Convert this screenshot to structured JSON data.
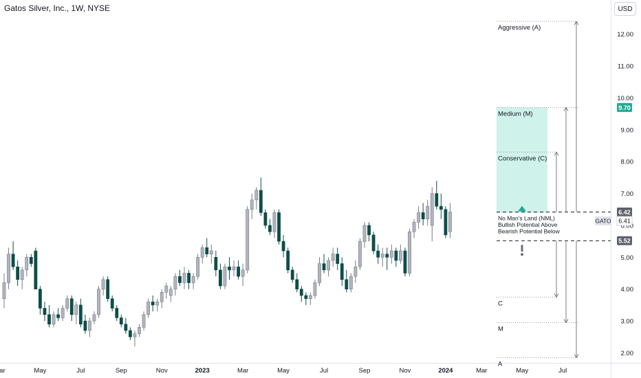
{
  "header": {
    "title": "Gatos Silver, Inc., 1W, NYSE",
    "currency": "USD"
  },
  "colors": {
    "up": "#b2b5be",
    "down": "#0e4d4a",
    "accent": "#22ab94",
    "zone": "#cff2ea"
  },
  "chart_data": {
    "type": "candlestick",
    "symbol": "GATO",
    "ylim": [
      1.75,
      12.9
    ],
    "y_ticks": [
      "2.00",
      "3.00",
      "4.00",
      "5.00",
      "6.00",
      "7.00",
      "8.00",
      "9.00",
      "10.00",
      "11.00",
      "12.00"
    ],
    "x_tick_labels": [
      {
        "label": "Mar",
        "bar": -1
      },
      {
        "label": "May",
        "bar": 8
      },
      {
        "label": "Jul",
        "bar": 17
      },
      {
        "label": "Sep",
        "bar": 26
      },
      {
        "label": "Nov",
        "bar": 35
      },
      {
        "label": "2023",
        "bar": 44
      },
      {
        "label": "Mar",
        "bar": 53
      },
      {
        "label": "May",
        "bar": 62
      },
      {
        "label": "Jul",
        "bar": 71
      },
      {
        "label": "Sep",
        "bar": 80
      },
      {
        "label": "Nov",
        "bar": 89
      },
      {
        "label": "2024",
        "bar": 98
      },
      {
        "label": "Mar",
        "bar": 106
      },
      {
        "label": "May",
        "bar": 115
      },
      {
        "label": "Jul",
        "bar": 124
      }
    ],
    "ohlc": [
      [
        3.7,
        4.5,
        3.4,
        4.2
      ],
      [
        4.2,
        5.3,
        4.0,
        5.1
      ],
      [
        5.1,
        5.5,
        4.6,
        4.7
      ],
      [
        4.7,
        4.9,
        4.1,
        4.3
      ],
      [
        4.3,
        4.7,
        4.0,
        4.6
      ],
      [
        4.6,
        5.1,
        4.4,
        5.0
      ],
      [
        5.0,
        5.1,
        4.7,
        4.8
      ],
      [
        5.2,
        5.3,
        4.0,
        4.0
      ],
      [
        4.0,
        4.1,
        3.2,
        3.4
      ],
      [
        3.4,
        3.6,
        3.0,
        3.2
      ],
      [
        3.2,
        3.5,
        2.8,
        2.9
      ],
      [
        2.9,
        3.3,
        2.8,
        3.2
      ],
      [
        3.2,
        3.4,
        3.0,
        3.1
      ],
      [
        3.1,
        3.5,
        3.0,
        3.4
      ],
      [
        3.4,
        3.8,
        3.3,
        3.7
      ],
      [
        3.7,
        3.8,
        3.0,
        3.2
      ],
      [
        3.2,
        3.6,
        2.9,
        3.5
      ],
      [
        3.5,
        3.7,
        2.8,
        2.9
      ],
      [
        3.0,
        3.2,
        2.6,
        2.7
      ],
      [
        2.7,
        3.1,
        2.5,
        3.0
      ],
      [
        3.0,
        3.3,
        2.9,
        3.2
      ],
      [
        3.2,
        4.1,
        3.1,
        4.0
      ],
      [
        4.0,
        4.4,
        3.8,
        4.3
      ],
      [
        4.3,
        4.4,
        3.6,
        3.7
      ],
      [
        3.7,
        3.8,
        3.3,
        3.4
      ],
      [
        3.4,
        3.5,
        3.0,
        3.1
      ],
      [
        3.1,
        3.2,
        2.8,
        2.9
      ],
      [
        2.9,
        3.1,
        2.6,
        2.7
      ],
      [
        2.7,
        2.8,
        2.4,
        2.5
      ],
      [
        2.5,
        2.7,
        2.2,
        2.6
      ],
      [
        2.6,
        2.9,
        2.5,
        2.8
      ],
      [
        2.8,
        3.3,
        2.7,
        3.2
      ],
      [
        3.2,
        3.7,
        3.1,
        3.6
      ],
      [
        3.6,
        3.8,
        3.3,
        3.5
      ],
      [
        3.5,
        3.7,
        3.3,
        3.6
      ],
      [
        3.6,
        4.0,
        3.4,
        3.9
      ],
      [
        3.9,
        4.2,
        3.7,
        4.1
      ],
      [
        3.8,
        4.1,
        3.6,
        4.0
      ],
      [
        4.0,
        4.5,
        3.8,
        4.4
      ],
      [
        4.4,
        4.6,
        4.1,
        4.2
      ],
      [
        4.2,
        4.7,
        4.0,
        4.5
      ],
      [
        4.5,
        4.6,
        4.0,
        4.2
      ],
      [
        4.2,
        4.5,
        4.0,
        4.4
      ],
      [
        4.4,
        5.1,
        4.3,
        5.0
      ],
      [
        5.0,
        5.4,
        4.8,
        5.3
      ],
      [
        5.3,
        5.6,
        5.0,
        5.1
      ],
      [
        5.1,
        5.4,
        4.8,
        5.2
      ],
      [
        5.0,
        5.2,
        4.4,
        4.6
      ],
      [
        4.6,
        4.8,
        4.0,
        4.1
      ],
      [
        4.1,
        4.8,
        4.0,
        4.7
      ],
      [
        4.7,
        5.0,
        4.3,
        4.6
      ],
      [
        4.6,
        4.9,
        4.4,
        4.7
      ],
      [
        4.7,
        4.9,
        4.3,
        4.4
      ],
      [
        4.4,
        4.8,
        4.1,
        4.6
      ],
      [
        4.6,
        6.6,
        4.5,
        6.5
      ],
      [
        6.5,
        7.0,
        6.2,
        6.8
      ],
      [
        6.8,
        7.2,
        6.5,
        7.1
      ],
      [
        7.1,
        7.5,
        6.3,
        6.4
      ],
      [
        6.4,
        6.5,
        5.9,
        6.0
      ],
      [
        6.0,
        6.2,
        5.7,
        5.8
      ],
      [
        5.8,
        6.5,
        5.6,
        6.4
      ],
      [
        6.4,
        6.5,
        5.4,
        5.5
      ],
      [
        5.5,
        5.7,
        5.0,
        5.2
      ],
      [
        5.2,
        5.3,
        4.5,
        4.6
      ],
      [
        4.6,
        4.7,
        4.2,
        4.3
      ],
      [
        4.3,
        4.5,
        3.9,
        4.0
      ],
      [
        4.0,
        4.1,
        3.6,
        3.8
      ],
      [
        3.8,
        3.9,
        3.5,
        3.7
      ],
      [
        3.7,
        3.9,
        3.5,
        3.8
      ],
      [
        3.8,
        4.3,
        3.7,
        4.2
      ],
      [
        4.2,
        5.0,
        4.1,
        4.8
      ],
      [
        4.8,
        5.1,
        4.5,
        4.6
      ],
      [
        4.6,
        5.0,
        4.4,
        4.9
      ],
      [
        4.9,
        5.3,
        4.7,
        5.1
      ],
      [
        5.1,
        5.3,
        4.6,
        4.8
      ],
      [
        4.8,
        5.0,
        4.1,
        4.3
      ],
      [
        4.3,
        4.6,
        3.9,
        4.0
      ],
      [
        4.0,
        4.5,
        3.9,
        4.4
      ],
      [
        4.4,
        4.9,
        4.2,
        4.7
      ],
      [
        4.7,
        5.6,
        4.6,
        5.5
      ],
      [
        5.5,
        6.1,
        5.3,
        6.0
      ],
      [
        6.0,
        6.1,
        5.5,
        5.7
      ],
      [
        5.7,
        5.8,
        5.1,
        5.2
      ],
      [
        5.2,
        5.4,
        4.8,
        5.0
      ],
      [
        5.0,
        5.3,
        4.7,
        5.1
      ],
      [
        5.1,
        5.3,
        4.6,
        5.0
      ],
      [
        5.0,
        5.4,
        4.8,
        5.2
      ],
      [
        5.2,
        5.3,
        4.7,
        4.9
      ],
      [
        4.9,
        5.4,
        4.8,
        5.2
      ],
      [
        5.2,
        5.3,
        4.4,
        4.5
      ],
      [
        4.5,
        5.9,
        4.4,
        5.8
      ],
      [
        5.8,
        6.2,
        5.6,
        6.1
      ],
      [
        6.1,
        6.6,
        5.9,
        6.4
      ],
      [
        6.4,
        6.7,
        6.0,
        6.2
      ],
      [
        6.2,
        6.8,
        6.0,
        6.6
      ],
      [
        6.0,
        7.2,
        5.5,
        7.0
      ],
      [
        7.0,
        7.4,
        6.5,
        6.6
      ],
      [
        6.6,
        7.0,
        6.2,
        6.5
      ],
      [
        6.5,
        6.6,
        5.6,
        5.7
      ],
      [
        5.8,
        6.7,
        5.6,
        6.42
      ]
    ],
    "levels": {
      "last": 6.41,
      "cur": 6.42,
      "nml_low": 5.52,
      "conservative": 8.3,
      "medium": 9.7,
      "aggressive": 12.4,
      "bear_c": 3.75,
      "bear_m": 2.95,
      "bear_a": 1.85
    },
    "annotations": {
      "aggressive": "Aggressive (A)",
      "medium": "Medium (M)",
      "conservative": "Conservative (C)",
      "nml_lines": [
        "No Man's Land (NML)",
        "Bullish Potential Above",
        "Bearish Potential Below"
      ],
      "bear_c": "C",
      "bear_m": "M",
      "bear_a": "A"
    },
    "price_labels": {
      "medium": "9.70",
      "cur": "6.42",
      "last": "6.41",
      "nml_low": "5.52",
      "symbol": "GATO"
    }
  }
}
